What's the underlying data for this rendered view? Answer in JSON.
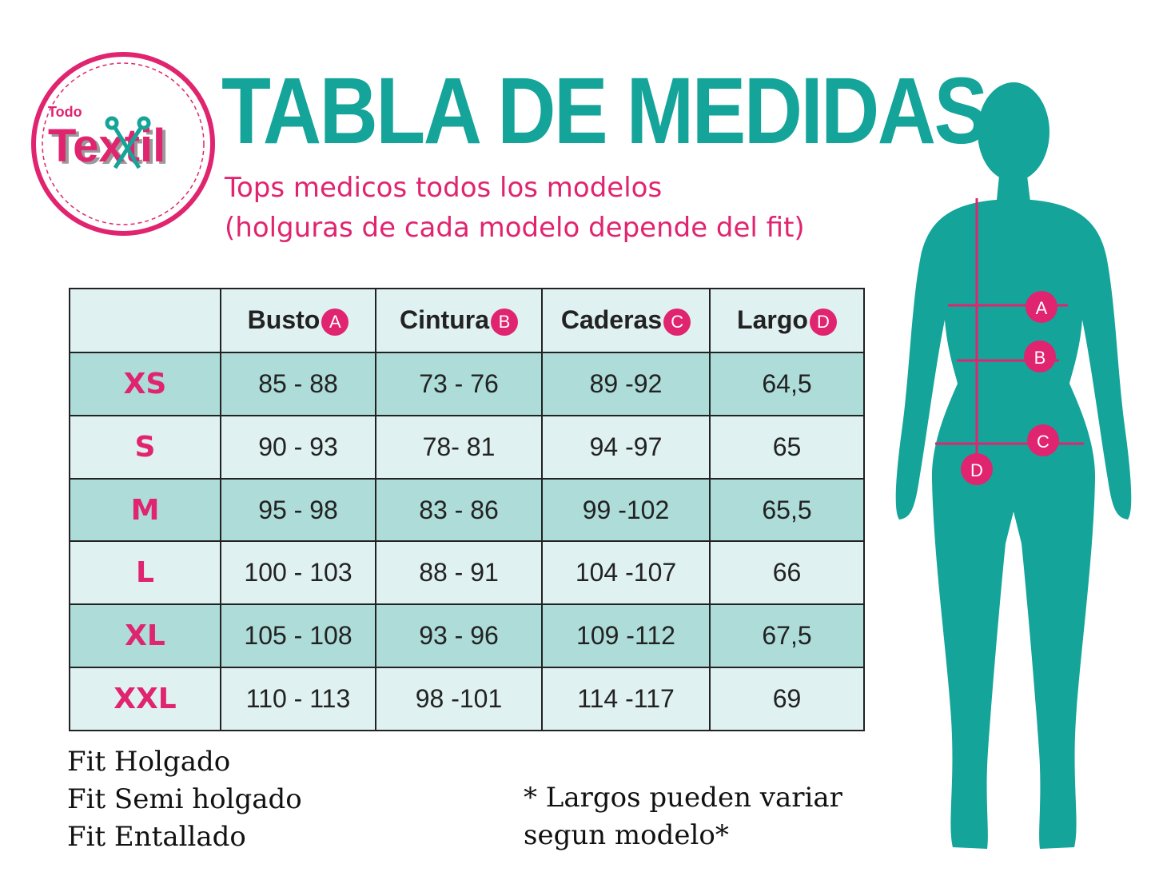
{
  "logo": {
    "top_text": "Todo",
    "main_text": "Textil"
  },
  "title": "TABLA DE MEDIDAS",
  "subtitle_line1": "Tops medicos todos los modelos",
  "subtitle_line2": "(holguras de cada modelo depende del fit)",
  "table": {
    "headers": [
      {
        "label": "Busto",
        "badge": "A"
      },
      {
        "label": "Cintura",
        "badge": "B"
      },
      {
        "label": "Caderas",
        "badge": "C"
      },
      {
        "label": "Largo",
        "badge": "D"
      }
    ],
    "rows": [
      {
        "size": "XS",
        "busto": "85 - 88",
        "cintura": "73 - 76",
        "caderas": "89 -92",
        "largo": "64,5"
      },
      {
        "size": "S",
        "busto": "90 - 93",
        "cintura": "78- 81",
        "caderas": "94 -97",
        "largo": "65"
      },
      {
        "size": "M",
        "busto": "95 - 98",
        "cintura": "83 - 86",
        "caderas": "99 -102",
        "largo": "65,5"
      },
      {
        "size": "L",
        "busto": "100 - 103",
        "cintura": "88 - 91",
        "caderas": "104 -107",
        "largo": "66"
      },
      {
        "size": "XL",
        "busto": "105 - 108",
        "cintura": "93 - 96",
        "caderas": "109 -112",
        "largo": "67,5"
      },
      {
        "size": "XXL",
        "busto": "110 - 113",
        "cintura": "98 -101",
        "caderas": "114 -117",
        "largo": "69"
      }
    ]
  },
  "fits": [
    "Fit Holgado",
    "Fit Semi holgado",
    "Fit Entallado"
  ],
  "note_line1": "* Largos pueden variar",
  "note_line2": "segun modelo*",
  "figure": {
    "markers": [
      "A",
      "B",
      "C",
      "D"
    ]
  },
  "colors": {
    "teal": "#14a49a",
    "pink": "#e0246f",
    "row_dark": "#addcd9",
    "row_light": "#dff1f0"
  }
}
